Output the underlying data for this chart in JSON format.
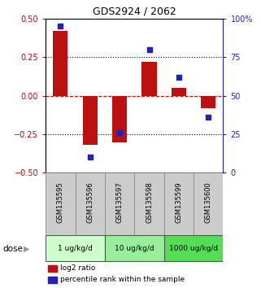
{
  "title": "GDS2924 / 2062",
  "samples": [
    "GSM135595",
    "GSM135596",
    "GSM135597",
    "GSM135598",
    "GSM135599",
    "GSM135600"
  ],
  "log2_ratio": [
    0.42,
    -0.32,
    -0.3,
    0.22,
    0.05,
    -0.08
  ],
  "percentile_rank": [
    95,
    10,
    26,
    80,
    62,
    36
  ],
  "bar_color": "#bb1111",
  "dot_color": "#2222bb",
  "ylim_left": [
    -0.5,
    0.5
  ],
  "ylim_right": [
    0,
    100
  ],
  "yticks_left": [
    -0.5,
    -0.25,
    0,
    0.25,
    0.5
  ],
  "yticks_right": [
    0,
    25,
    50,
    75,
    100
  ],
  "ytick_labels_right": [
    "0",
    "25",
    "50",
    "75",
    "100%"
  ],
  "hlines_dotted": [
    0.25,
    -0.25
  ],
  "hline_dashed_red": 0,
  "dose_groups": [
    {
      "label": "1 ug/kg/d",
      "samples": [
        0,
        1
      ],
      "color": "#ccffcc"
    },
    {
      "label": "10 ug/kg/d",
      "samples": [
        2,
        3
      ],
      "color": "#99ee99"
    },
    {
      "label": "1000 ug/kg/d",
      "samples": [
        4,
        5
      ],
      "color": "#55dd55"
    }
  ],
  "dose_label": "dose",
  "legend_bar_label": "log2 ratio",
  "legend_dot_label": "percentile rank within the sample",
  "left_axis_color": "#cc0000",
  "right_axis_color": "#2222bb",
  "sample_box_color": "#cccccc",
  "bar_width": 0.5
}
